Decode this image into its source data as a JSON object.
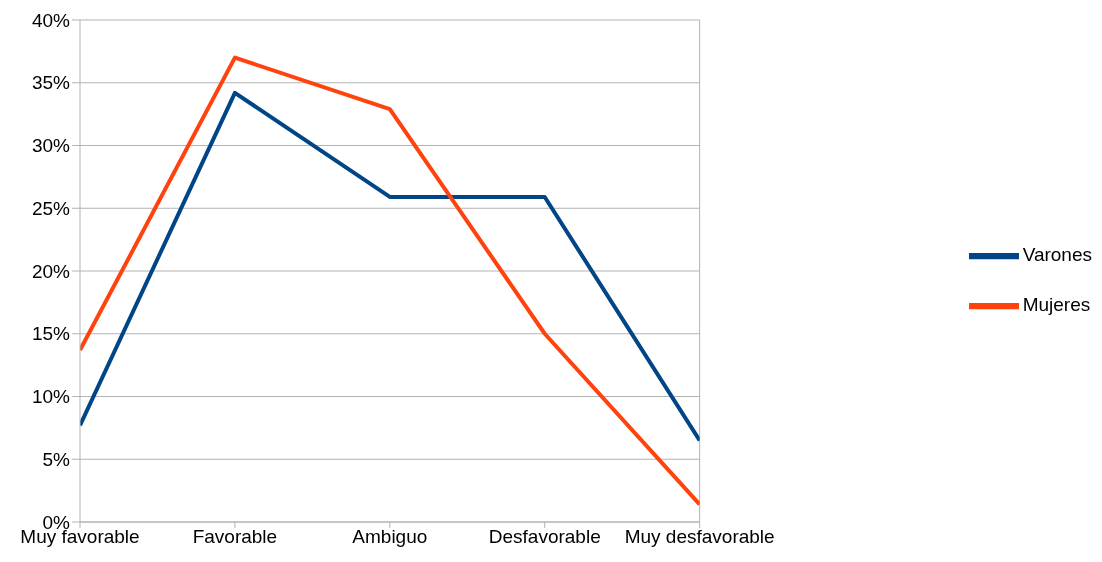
{
  "chart_data": {
    "type": "line",
    "categories": [
      "Muy favorable",
      "Favorable",
      "Ambiguo",
      "Desfavorable",
      "Muy desfavorable"
    ],
    "series": [
      {
        "name": "Varones",
        "color": "#004586",
        "values": [
          7.7,
          34.2,
          25.9,
          25.9,
          6.5
        ]
      },
      {
        "name": "Mujeres",
        "color": "#ff420e",
        "values": [
          13.7,
          37.0,
          32.9,
          15.0,
          1.4
        ]
      }
    ],
    "ylim": [
      0,
      40
    ],
    "yticks": [
      {
        "value": 0,
        "label": "0%"
      },
      {
        "value": 5,
        "label": "5%"
      },
      {
        "value": 10,
        "label": "10%"
      },
      {
        "value": 15,
        "label": "15%"
      },
      {
        "value": 20,
        "label": "20%"
      },
      {
        "value": 25,
        "label": "25%"
      },
      {
        "value": 30,
        "label": "30%"
      },
      {
        "value": 35,
        "label": "35%"
      },
      {
        "value": 40,
        "label": "40%"
      }
    ],
    "grid": "y",
    "legend": "right"
  }
}
